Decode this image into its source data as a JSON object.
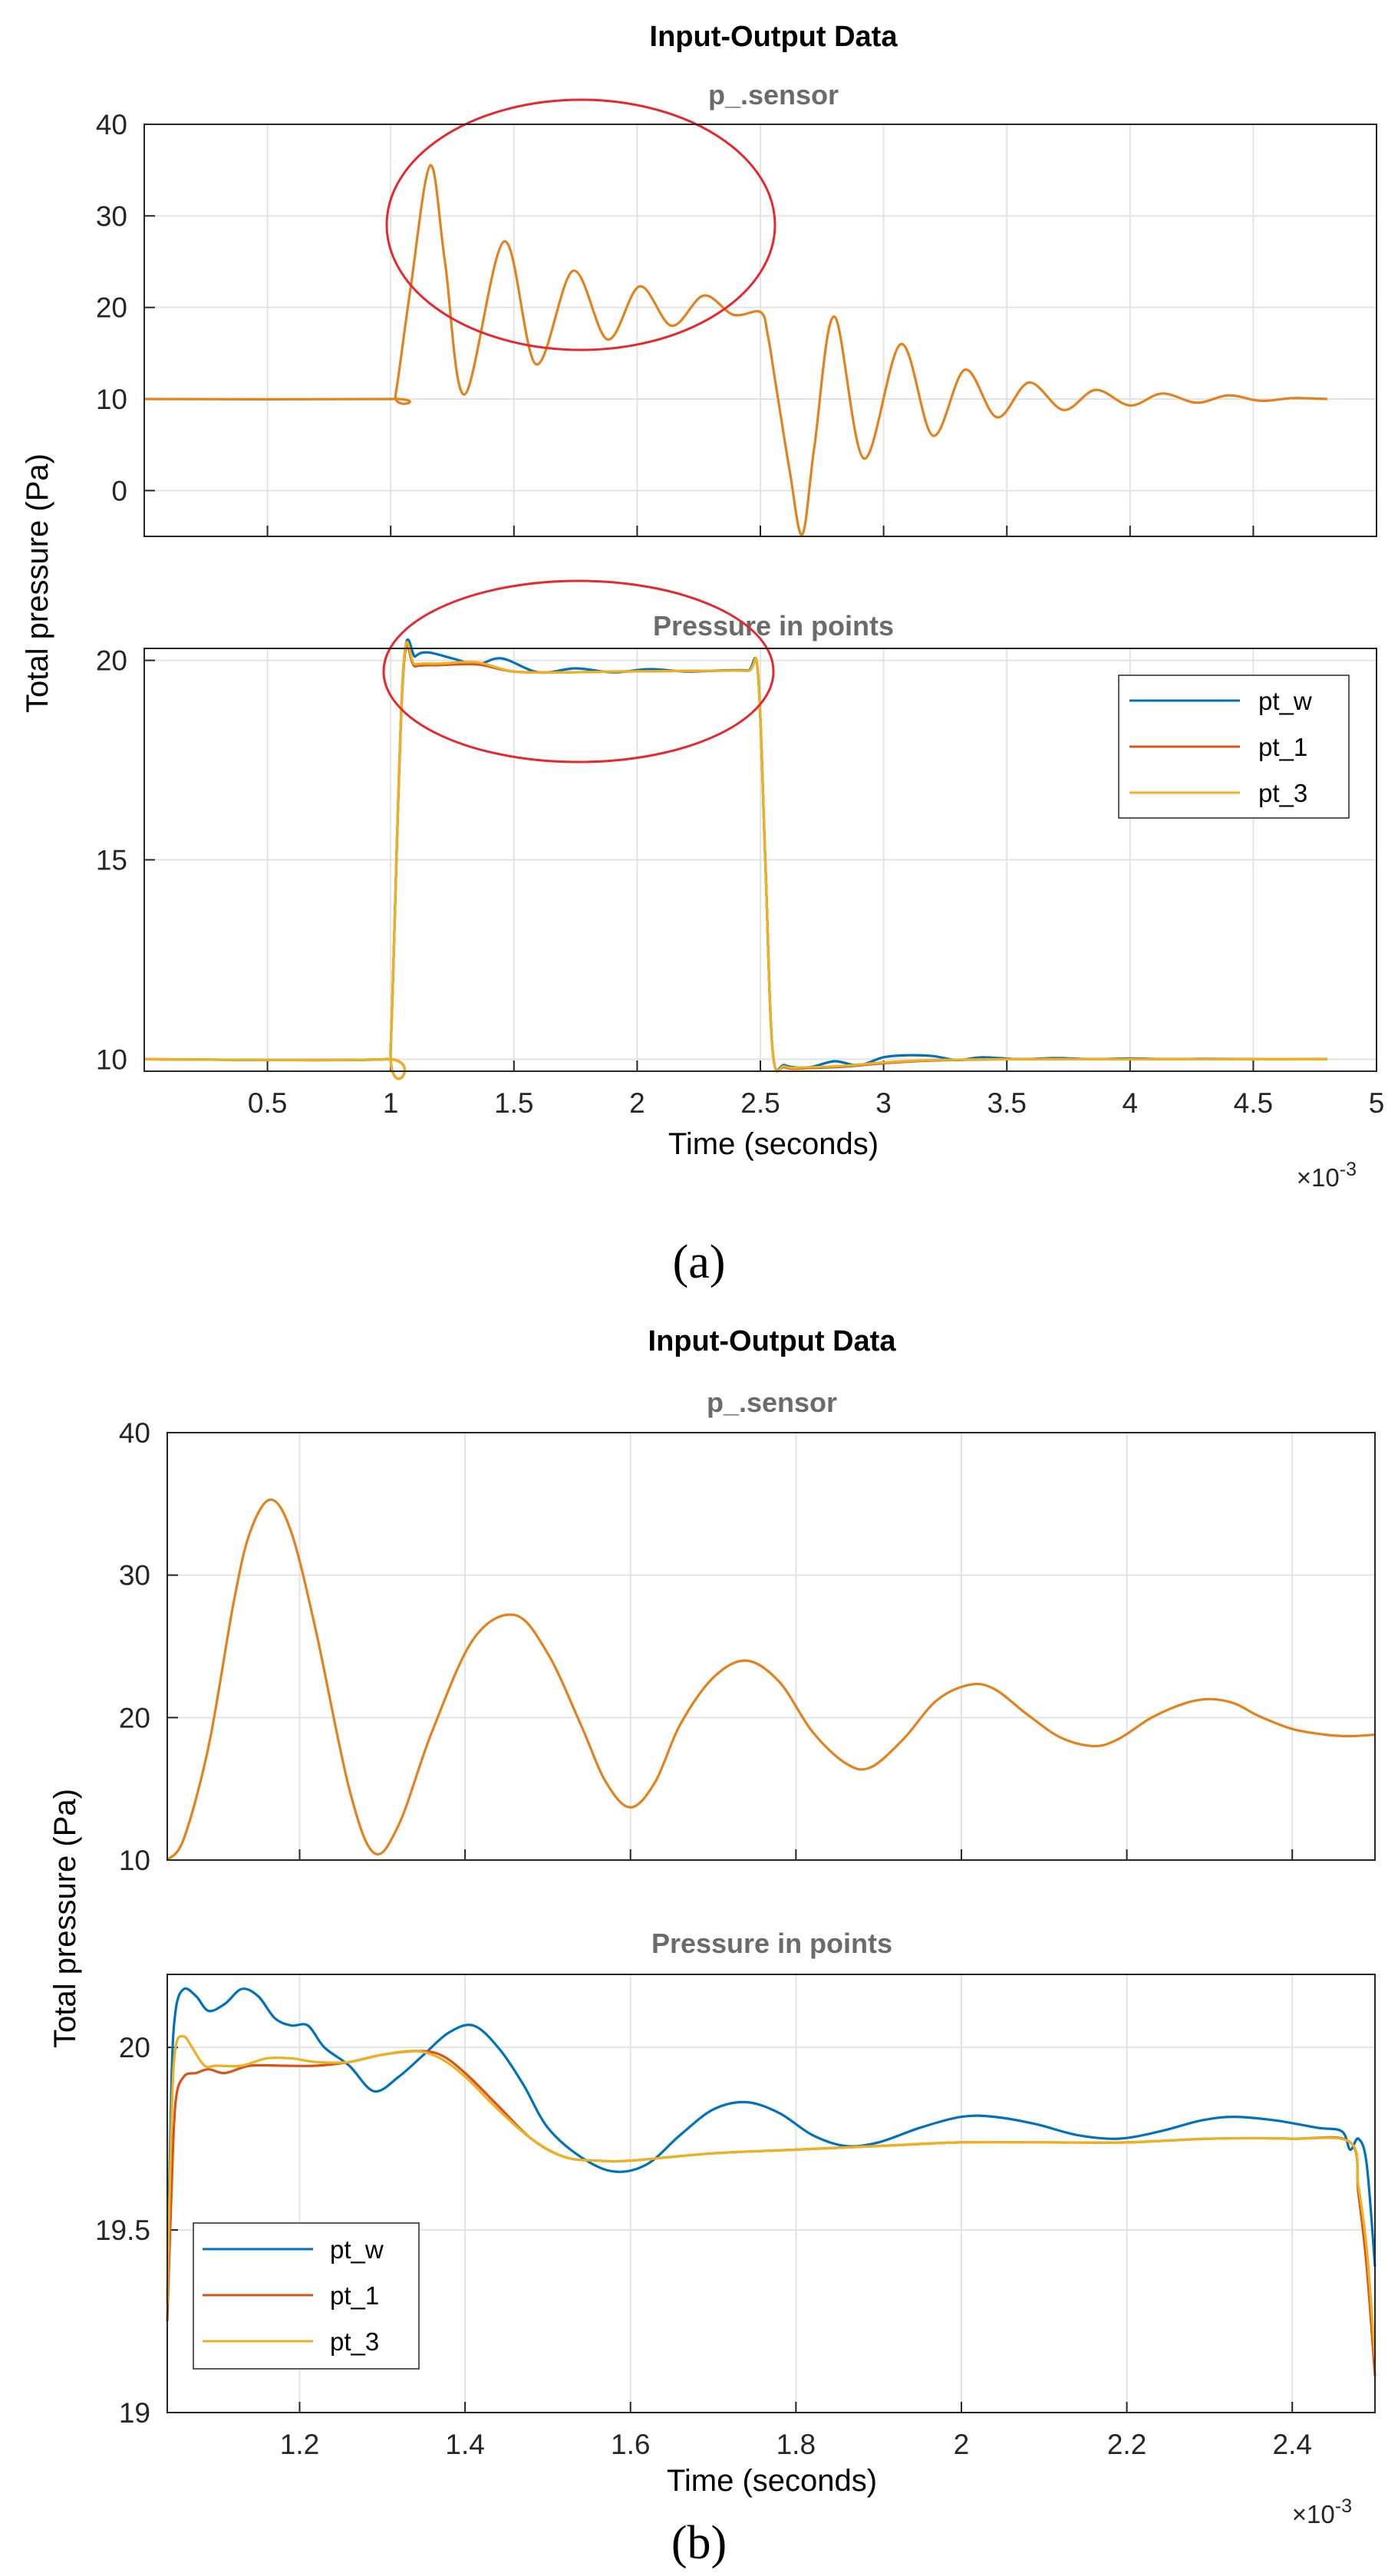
{
  "colors": {
    "pt_w": "#0072BD",
    "pt_1": "#D95319",
    "pt_3": "#EDB120",
    "sensor": "#E3821C",
    "circle": "#E8262C",
    "grid": "#e3e3e3",
    "axis": "#262626"
  },
  "chart_data": [
    {
      "id": "a",
      "caption": "(a)",
      "title": "Input-Output Data",
      "ylabel": "Total pressure (Pa)",
      "xlabel": "Time (seconds)",
      "x_exponent_base": "×10",
      "x_exponent_power": "-3",
      "xlim": [
        0.0,
        5.0
      ],
      "xticks": [
        0.5,
        1,
        1.5,
        2,
        2.5,
        3,
        3.5,
        4,
        4.5,
        5
      ],
      "xtick_labels": [
        "0.5",
        "1",
        "1.5",
        "2",
        "2.5",
        "3",
        "3.5",
        "4",
        "4.5",
        "5"
      ],
      "panels": [
        {
          "type": "line",
          "subtitle": "p_.sensor",
          "ylim": [
            -5,
            40
          ],
          "yticks": [
            0,
            10,
            20,
            30,
            40
          ],
          "ytick_labels": [
            "0",
            "10",
            "20",
            "30",
            "40"
          ],
          "series": [
            {
              "name": "p_.sensor",
              "color_key": "sensor",
              "x": [
                0,
                1.0,
                1.02,
                1.08,
                1.16,
                1.22,
                1.3,
                1.46,
                1.59,
                1.74,
                1.88,
                2.01,
                2.14,
                2.27,
                2.39,
                2.5,
                2.53,
                2.56,
                2.62,
                2.67,
                2.72,
                2.8,
                2.92,
                3.07,
                3.2,
                3.33,
                3.46,
                3.59,
                3.73,
                3.86,
                4.0,
                4.13,
                4.27,
                4.4,
                4.53,
                4.66,
                4.8
              ],
              "y": [
                10,
                10,
                10.5,
                22,
                35.5,
                25,
                10.5,
                27.2,
                13.8,
                24,
                16.5,
                22.3,
                18,
                21.3,
                19.2,
                19.5,
                17,
                12,
                2,
                -4.8,
                5,
                19,
                3.5,
                16,
                6,
                13.2,
                8,
                11.8,
                8.8,
                11,
                9.3,
                10.6,
                9.6,
                10.4,
                9.8,
                10.1,
                10
              ]
            }
          ],
          "annotation": "ellipse around x≈1.05–2.55, y≈10–41"
        },
        {
          "type": "line",
          "subtitle": "Pressure in points",
          "ylim": [
            9.7,
            20.3
          ],
          "yticks": [
            10,
            15,
            20
          ],
          "ytick_labels": [
            "10",
            "15",
            "20"
          ],
          "legend": {
            "position": "top-right",
            "entries": [
              "pt_w",
              "pt_1",
              "pt_3"
            ]
          },
          "series": [
            {
              "name": "pt_w",
              "color_key": "pt_w",
              "x": [
                0,
                0.98,
                1.0,
                1.05,
                1.1,
                1.15,
                1.25,
                1.35,
                1.45,
                1.6,
                1.75,
                1.9,
                2.05,
                2.2,
                2.35,
                2.45,
                2.49,
                2.52,
                2.55,
                2.6,
                2.7,
                2.8,
                2.9,
                3.0,
                3.1,
                3.2,
                3.3,
                3.4,
                3.55,
                3.7,
                3.85,
                4.0,
                4.15,
                4.3,
                4.5,
                4.8
              ],
              "y": [
                10,
                10,
                10.3,
                19.7,
                20.1,
                20.2,
                20.05,
                19.9,
                20.05,
                19.7,
                19.8,
                19.7,
                19.78,
                19.72,
                19.75,
                19.75,
                19.7,
                15,
                10.2,
                9.85,
                9.8,
                9.95,
                9.85,
                10.05,
                10.1,
                10.08,
                9.98,
                10.05,
                10.0,
                10.03,
                10.0,
                10.02,
                10.0,
                10.01,
                10.0,
                10.0
              ]
            },
            {
              "name": "pt_1",
              "color_key": "pt_1",
              "x": [
                0,
                0.98,
                1.0,
                1.05,
                1.1,
                1.2,
                1.35,
                1.5,
                1.7,
                1.9,
                2.1,
                2.3,
                2.45,
                2.49,
                2.52,
                2.55,
                2.6,
                2.7,
                2.85,
                3.0,
                3.2,
                3.5,
                3.8,
                4.2,
                4.8
              ],
              "y": [
                10,
                10,
                10.3,
                19.6,
                19.85,
                19.88,
                19.9,
                19.72,
                19.7,
                19.72,
                19.73,
                19.74,
                19.74,
                19.7,
                15,
                10.2,
                9.8,
                9.78,
                9.82,
                9.9,
                9.97,
                10.0,
                10.0,
                10.0,
                10.0
              ]
            },
            {
              "name": "pt_3",
              "color_key": "pt_3",
              "x": [
                0,
                0.98,
                1.0,
                1.05,
                1.1,
                1.2,
                1.35,
                1.5,
                1.7,
                1.9,
                2.1,
                2.3,
                2.45,
                2.49,
                2.52,
                2.55,
                2.6,
                2.7,
                2.85,
                3.0,
                3.2,
                3.5,
                3.8,
                4.2,
                4.8
              ],
              "y": [
                10,
                10,
                10.3,
                19.7,
                19.9,
                19.92,
                19.95,
                19.72,
                19.7,
                19.72,
                19.73,
                19.74,
                19.74,
                19.7,
                15,
                10.2,
                9.82,
                9.8,
                9.84,
                9.92,
                9.98,
                10.0,
                10.0,
                10.0,
                10.0
              ]
            }
          ],
          "annotation": "ellipse around x≈1.0–2.6, y≈19.1–20.3"
        }
      ]
    },
    {
      "id": "b",
      "caption": "(b)",
      "title": "Input-Output Data",
      "ylabel": "Total pressure (Pa)",
      "xlabel": "Time (seconds)",
      "x_exponent_base": "×10",
      "x_exponent_power": "-3",
      "xlim": [
        1.04,
        2.5
      ],
      "xticks": [
        1.2,
        1.4,
        1.6,
        1.8,
        2.0,
        2.2,
        2.4
      ],
      "xtick_labels": [
        "1.2",
        "1.4",
        "1.6",
        "1.8",
        "2",
        "2.2",
        "2.4"
      ],
      "panels": [
        {
          "type": "line",
          "subtitle": "p_.sensor",
          "ylim": [
            10,
            40
          ],
          "yticks": [
            10,
            20,
            30,
            40
          ],
          "ytick_labels": [
            "10",
            "20",
            "30",
            "40"
          ],
          "series": [
            {
              "name": "p_.sensor",
              "color_key": "sensor",
              "x": [
                1.04,
                1.06,
                1.09,
                1.12,
                1.14,
                1.165,
                1.19,
                1.22,
                1.26,
                1.29,
                1.32,
                1.36,
                1.41,
                1.46,
                1.5,
                1.54,
                1.57,
                1.6,
                1.63,
                1.66,
                1.7,
                1.74,
                1.78,
                1.82,
                1.86,
                1.89,
                1.93,
                1.97,
                2.01,
                2.04,
                2.08,
                2.12,
                2.16,
                2.19,
                2.23,
                2.27,
                2.3,
                2.33,
                2.36,
                2.4,
                2.44,
                2.47,
                2.5
              ],
              "y": [
                10,
                11.5,
                18,
                28,
                33,
                35.3,
                33,
                26,
                15,
                10.5,
                12.5,
                19,
                25.5,
                27.2,
                24.5,
                19.5,
                15.5,
                13.7,
                15.5,
                19.5,
                22.8,
                24,
                22.5,
                19,
                16.8,
                16.5,
                18.5,
                21.2,
                22.3,
                22,
                20.2,
                18.6,
                18,
                18.5,
                20,
                21,
                21.3,
                21,
                20.1,
                19.2,
                18.8,
                18.7,
                18.8
              ]
            }
          ]
        },
        {
          "type": "line",
          "subtitle": "Pressure in points",
          "ylim": [
            19.0,
            20.2
          ],
          "yticks": [
            19,
            19.5,
            20
          ],
          "ytick_labels": [
            "19",
            "19.5",
            "20"
          ],
          "legend": {
            "position": "bottom-left",
            "entries": [
              "pt_w",
              "pt_1",
              "pt_3"
            ]
          },
          "series": [
            {
              "name": "pt_w",
              "color_key": "pt_w",
              "x": [
                1.04,
                1.045,
                1.05,
                1.06,
                1.075,
                1.09,
                1.11,
                1.13,
                1.15,
                1.17,
                1.19,
                1.21,
                1.23,
                1.26,
                1.29,
                1.32,
                1.35,
                1.38,
                1.41,
                1.44,
                1.47,
                1.5,
                1.54,
                1.58,
                1.62,
                1.66,
                1.7,
                1.74,
                1.78,
                1.82,
                1.86,
                1.9,
                1.95,
                2.0,
                2.04,
                2.09,
                2.14,
                2.19,
                2.24,
                2.29,
                2.33,
                2.38,
                2.43,
                2.46,
                2.47,
                2.48,
                2.49,
                2.5
              ],
              "y": [
                19.3,
                19.9,
                20.1,
                20.16,
                20.14,
                20.1,
                20.12,
                20.16,
                20.14,
                20.08,
                20.06,
                20.06,
                20.0,
                19.95,
                19.88,
                19.92,
                19.98,
                20.04,
                20.06,
                20.0,
                19.9,
                19.78,
                19.7,
                19.66,
                19.68,
                19.76,
                19.83,
                19.85,
                19.82,
                19.76,
                19.73,
                19.74,
                19.78,
                19.81,
                19.81,
                19.79,
                19.76,
                19.75,
                19.77,
                19.8,
                19.81,
                19.8,
                19.78,
                19.77,
                19.72,
                19.75,
                19.68,
                19.4
              ]
            },
            {
              "name": "pt_1",
              "color_key": "pt_1",
              "x": [
                1.04,
                1.045,
                1.05,
                1.06,
                1.075,
                1.09,
                1.11,
                1.14,
                1.18,
                1.22,
                1.26,
                1.3,
                1.34,
                1.37,
                1.4,
                1.44,
                1.48,
                1.52,
                1.56,
                1.6,
                1.7,
                1.8,
                1.9,
                2.0,
                2.1,
                2.2,
                2.3,
                2.4,
                2.47,
                2.48,
                2.49,
                2.5
              ],
              "y": [
                19.25,
                19.6,
                19.85,
                19.92,
                19.93,
                19.94,
                19.93,
                19.95,
                19.95,
                19.95,
                19.96,
                19.98,
                19.99,
                19.98,
                19.93,
                19.84,
                19.75,
                19.7,
                19.69,
                19.69,
                19.71,
                19.72,
                19.73,
                19.74,
                19.74,
                19.74,
                19.75,
                19.75,
                19.74,
                19.6,
                19.4,
                19.1
              ]
            },
            {
              "name": "pt_3",
              "color_key": "pt_3",
              "x": [
                1.04,
                1.045,
                1.05,
                1.06,
                1.07,
                1.085,
                1.1,
                1.13,
                1.16,
                1.19,
                1.22,
                1.26,
                1.3,
                1.34,
                1.37,
                1.4,
                1.44,
                1.48,
                1.52,
                1.56,
                1.6,
                1.7,
                1.8,
                1.9,
                2.0,
                2.1,
                2.2,
                2.3,
                2.4,
                2.47,
                2.48,
                2.49,
                2.5
              ],
              "y": [
                19.3,
                19.8,
                20.0,
                20.03,
                20.0,
                19.95,
                19.95,
                19.95,
                19.97,
                19.97,
                19.96,
                19.96,
                19.98,
                19.99,
                19.97,
                19.92,
                19.83,
                19.75,
                19.7,
                19.69,
                19.69,
                19.71,
                19.72,
                19.73,
                19.74,
                19.74,
                19.74,
                19.75,
                19.75,
                19.74,
                19.62,
                19.45,
                19.15
              ]
            }
          ]
        }
      ]
    }
  ]
}
